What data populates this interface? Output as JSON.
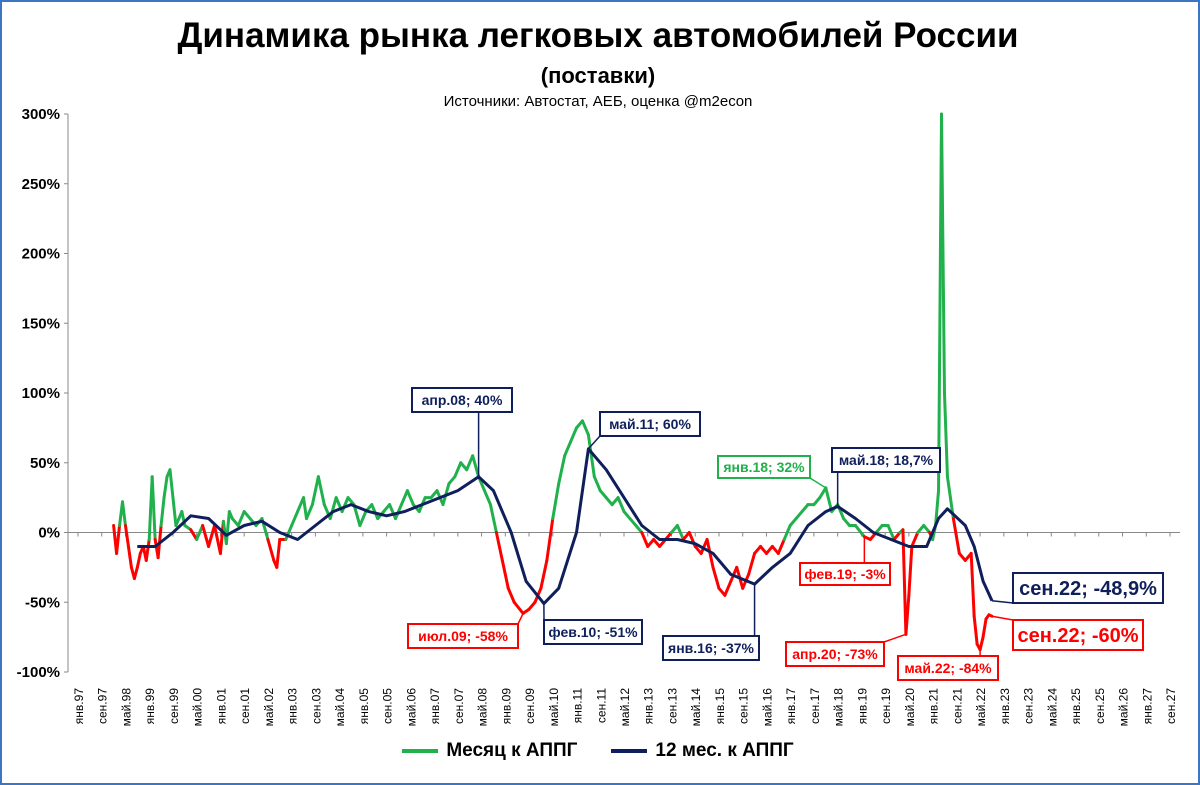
{
  "header": {
    "title": "Динамика рынка легковых автомобилей России",
    "subtitle": "(поставки)",
    "sources": "Источники: Автостат, АЕБ, оценка @m2econ"
  },
  "colors": {
    "monthly_up": "#20b14c",
    "monthly_down": "#ff0000",
    "annual": "#0f1f5c",
    "frame": "#3a76c4"
  },
  "legend": {
    "monthly": "Месяц к АППГ",
    "annual": "12 мес. к АППГ"
  },
  "chart_data": {
    "type": "line",
    "ylim": [
      -100,
      300
    ],
    "yticks": [
      -100,
      -50,
      0,
      50,
      100,
      150,
      200,
      250,
      300
    ],
    "ytick_labels": [
      "-100%",
      "-50%",
      "0%",
      "50%",
      "100%",
      "150%",
      "200%",
      "250%",
      "300%"
    ],
    "xlim": [
      "1997-01",
      "2027-09"
    ],
    "xtick_labels": [
      "янв.97",
      "сен.97",
      "май.98",
      "янв.99",
      "сен.99",
      "май.00",
      "янв.01",
      "сен.01",
      "май.02",
      "янв.03",
      "сен.03",
      "май.04",
      "янв.05",
      "сен.05",
      "май.06",
      "янв.07",
      "сен.07",
      "май.08",
      "янв.09",
      "сен.09",
      "май.10",
      "янв.11",
      "сен.11",
      "май.12",
      "янв.13",
      "сен.13",
      "май.14",
      "янв.15",
      "сен.15",
      "май.16",
      "янв.17",
      "сен.17",
      "май.18",
      "янв.19",
      "сен.19",
      "май.20",
      "янв.21",
      "сен.21",
      "май.22",
      "янв.23",
      "сен.23",
      "май.24",
      "янв.25",
      "сен.25",
      "май.26",
      "янв.27",
      "сен.27"
    ],
    "series": [
      {
        "name": "Месяц к АППГ",
        "points": [
          [
            "1998-01",
            5
          ],
          [
            "1998-02",
            -15
          ],
          [
            "1998-03",
            5
          ],
          [
            "1998-04",
            22
          ],
          [
            "1998-05",
            5
          ],
          [
            "1998-06",
            -10
          ],
          [
            "1998-07",
            -25
          ],
          [
            "1998-08",
            -33
          ],
          [
            "1998-09",
            -25
          ],
          [
            "1998-10",
            -15
          ],
          [
            "1998-11",
            -10
          ],
          [
            "1998-12",
            -20
          ],
          [
            "1999-01",
            -5
          ],
          [
            "1999-02",
            40
          ],
          [
            "1999-03",
            -5
          ],
          [
            "1999-04",
            -18
          ],
          [
            "1999-05",
            5
          ],
          [
            "1999-06",
            25
          ],
          [
            "1999-07",
            40
          ],
          [
            "1999-08",
            45
          ],
          [
            "1999-09",
            25
          ],
          [
            "1999-10",
            5
          ],
          [
            "1999-11",
            10
          ],
          [
            "1999-12",
            15
          ],
          [
            "2000-01",
            5
          ],
          [
            "2000-03",
            2
          ],
          [
            "2000-05",
            -5
          ],
          [
            "2000-07",
            5
          ],
          [
            "2000-09",
            -10
          ],
          [
            "2000-11",
            5
          ],
          [
            "2001-01",
            -15
          ],
          [
            "2001-02",
            8
          ],
          [
            "2001-03",
            -8
          ],
          [
            "2001-04",
            15
          ],
          [
            "2001-05",
            10
          ],
          [
            "2001-07",
            5
          ],
          [
            "2001-09",
            15
          ],
          [
            "2001-11",
            10
          ],
          [
            "2002-01",
            5
          ],
          [
            "2002-03",
            10
          ],
          [
            "2002-05",
            -5
          ],
          [
            "2002-07",
            -20
          ],
          [
            "2002-08",
            -25
          ],
          [
            "2002-09",
            -5
          ],
          [
            "2002-11",
            -5
          ],
          [
            "2003-01",
            5
          ],
          [
            "2003-03",
            15
          ],
          [
            "2003-05",
            25
          ],
          [
            "2003-06",
            10
          ],
          [
            "2003-08",
            20
          ],
          [
            "2003-10",
            40
          ],
          [
            "2003-12",
            20
          ],
          [
            "2004-02",
            10
          ],
          [
            "2004-04",
            25
          ],
          [
            "2004-06",
            15
          ],
          [
            "2004-08",
            25
          ],
          [
            "2004-10",
            20
          ],
          [
            "2004-12",
            5
          ],
          [
            "2005-02",
            15
          ],
          [
            "2005-04",
            20
          ],
          [
            "2005-06",
            10
          ],
          [
            "2005-08",
            15
          ],
          [
            "2005-10",
            20
          ],
          [
            "2005-12",
            10
          ],
          [
            "2006-02",
            20
          ],
          [
            "2006-04",
            30
          ],
          [
            "2006-06",
            20
          ],
          [
            "2006-08",
            15
          ],
          [
            "2006-10",
            25
          ],
          [
            "2006-12",
            25
          ],
          [
            "2007-02",
            30
          ],
          [
            "2007-04",
            20
          ],
          [
            "2007-06",
            35
          ],
          [
            "2007-08",
            40
          ],
          [
            "2007-10",
            50
          ],
          [
            "2007-12",
            45
          ],
          [
            "2008-02",
            55
          ],
          [
            "2008-04",
            40
          ],
          [
            "2008-06",
            30
          ],
          [
            "2008-08",
            20
          ],
          [
            "2008-10",
            0
          ],
          [
            "2008-12",
            -20
          ],
          [
            "2009-02",
            -40
          ],
          [
            "2009-04",
            -50
          ],
          [
            "2009-07",
            -58
          ],
          [
            "2009-09",
            -55
          ],
          [
            "2009-11",
            -50
          ],
          [
            "2010-01",
            -40
          ],
          [
            "2010-03",
            -20
          ],
          [
            "2010-05",
            10
          ],
          [
            "2010-07",
            35
          ],
          [
            "2010-09",
            55
          ],
          [
            "2010-11",
            65
          ],
          [
            "2011-01",
            75
          ],
          [
            "2011-03",
            80
          ],
          [
            "2011-05",
            70
          ],
          [
            "2011-07",
            40
          ],
          [
            "2011-09",
            30
          ],
          [
            "2011-11",
            25
          ],
          [
            "2012-01",
            20
          ],
          [
            "2012-03",
            25
          ],
          [
            "2012-05",
            15
          ],
          [
            "2012-07",
            10
          ],
          [
            "2012-09",
            5
          ],
          [
            "2012-11",
            0
          ],
          [
            "2013-01",
            -10
          ],
          [
            "2013-03",
            -5
          ],
          [
            "2013-05",
            -10
          ],
          [
            "2013-07",
            -5
          ],
          [
            "2013-09",
            0
          ],
          [
            "2013-11",
            5
          ],
          [
            "2014-01",
            -5
          ],
          [
            "2014-03",
            0
          ],
          [
            "2014-05",
            -10
          ],
          [
            "2014-07",
            -15
          ],
          [
            "2014-09",
            -5
          ],
          [
            "2014-11",
            -25
          ],
          [
            "2015-01",
            -40
          ],
          [
            "2015-03",
            -45
          ],
          [
            "2015-05",
            -35
          ],
          [
            "2015-07",
            -25
          ],
          [
            "2015-09",
            -40
          ],
          [
            "2015-11",
            -30
          ],
          [
            "2016-01",
            -15
          ],
          [
            "2016-03",
            -10
          ],
          [
            "2016-05",
            -15
          ],
          [
            "2016-07",
            -10
          ],
          [
            "2016-09",
            -15
          ],
          [
            "2016-11",
            -5
          ],
          [
            "2017-01",
            5
          ],
          [
            "2017-03",
            10
          ],
          [
            "2017-05",
            15
          ],
          [
            "2017-07",
            20
          ],
          [
            "2017-09",
            20
          ],
          [
            "2017-11",
            25
          ],
          [
            "2018-01",
            32
          ],
          [
            "2018-03",
            15
          ],
          [
            "2018-05",
            20
          ],
          [
            "2018-07",
            10
          ],
          [
            "2018-09",
            5
          ],
          [
            "2018-11",
            5
          ],
          [
            "2019-02",
            -3
          ],
          [
            "2019-04",
            -5
          ],
          [
            "2019-06",
            0
          ],
          [
            "2019-08",
            5
          ],
          [
            "2019-10",
            5
          ],
          [
            "2019-12",
            -5
          ],
          [
            "2020-02",
            0
          ],
          [
            "2020-03",
            2
          ],
          [
            "2020-04",
            -73
          ],
          [
            "2020-05",
            -45
          ],
          [
            "2020-06",
            -10
          ],
          [
            "2020-08",
            0
          ],
          [
            "2020-10",
            5
          ],
          [
            "2020-12",
            0
          ],
          [
            "2021-01",
            -5
          ],
          [
            "2021-02",
            5
          ],
          [
            "2021-03",
            30
          ],
          [
            "2021-04",
            300
          ],
          [
            "2021-05",
            100
          ],
          [
            "2021-06",
            40
          ],
          [
            "2021-08",
            10
          ],
          [
            "2021-10",
            -15
          ],
          [
            "2021-12",
            -20
          ],
          [
            "2022-02",
            -15
          ],
          [
            "2022-03",
            -60
          ],
          [
            "2022-04",
            -80
          ],
          [
            "2022-05",
            -84
          ],
          [
            "2022-06",
            -75
          ],
          [
            "2022-07",
            -62
          ],
          [
            "2022-08",
            -59
          ],
          [
            "2022-09",
            -60
          ]
        ]
      },
      {
        "name": "12 мес. к АППГ",
        "points": [
          [
            "1998-09",
            -10
          ],
          [
            "1999-03",
            -10
          ],
          [
            "1999-09",
            0
          ],
          [
            "2000-03",
            12
          ],
          [
            "2000-09",
            10
          ],
          [
            "2001-03",
            -2
          ],
          [
            "2001-09",
            5
          ],
          [
            "2002-03",
            8
          ],
          [
            "2002-09",
            0
          ],
          [
            "2003-03",
            -5
          ],
          [
            "2003-09",
            5
          ],
          [
            "2004-03",
            15
          ],
          [
            "2004-09",
            20
          ],
          [
            "2005-03",
            15
          ],
          [
            "2005-09",
            12
          ],
          [
            "2006-03",
            15
          ],
          [
            "2006-09",
            20
          ],
          [
            "2007-03",
            25
          ],
          [
            "2007-09",
            30
          ],
          [
            "2008-04",
            40
          ],
          [
            "2008-09",
            30
          ],
          [
            "2009-03",
            0
          ],
          [
            "2009-08",
            -35
          ],
          [
            "2010-02",
            -51
          ],
          [
            "2010-07",
            -40
          ],
          [
            "2011-01",
            0
          ],
          [
            "2011-05",
            60
          ],
          [
            "2011-11",
            45
          ],
          [
            "2012-05",
            25
          ],
          [
            "2012-11",
            5
          ],
          [
            "2013-05",
            -5
          ],
          [
            "2013-11",
            -5
          ],
          [
            "2014-05",
            -8
          ],
          [
            "2014-11",
            -15
          ],
          [
            "2015-05",
            -30
          ],
          [
            "2016-01",
            -37
          ],
          [
            "2016-07",
            -25
          ],
          [
            "2017-01",
            -15
          ],
          [
            "2017-07",
            5
          ],
          [
            "2018-01",
            15
          ],
          [
            "2018-05",
            18.7
          ],
          [
            "2018-11",
            10
          ],
          [
            "2019-05",
            0
          ],
          [
            "2019-11",
            -5
          ],
          [
            "2020-05",
            -10
          ],
          [
            "2020-11",
            -10
          ],
          [
            "2021-03",
            10
          ],
          [
            "2021-06",
            17
          ],
          [
            "2021-12",
            5
          ],
          [
            "2022-03",
            -10
          ],
          [
            "2022-06",
            -35
          ],
          [
            "2022-09",
            -48.9
          ]
        ]
      }
    ],
    "annotations": [
      {
        "text": "апр.08; 40%",
        "at": [
          "2008-04",
          40
        ],
        "style": "navy"
      },
      {
        "text": "май.11; 60%",
        "at": [
          "2011-05",
          60
        ],
        "style": "navy"
      },
      {
        "text": "янв.18; 32%",
        "at": [
          "2018-01",
          32
        ],
        "style": "green"
      },
      {
        "text": "май.18; 18,7%",
        "at": [
          "2018-05",
          18.7
        ],
        "style": "navy"
      },
      {
        "text": "фев.19; -3%",
        "at": [
          "2019-02",
          -3
        ],
        "style": "red"
      },
      {
        "text": "июл.09; -58%",
        "at": [
          "2009-07",
          -58
        ],
        "style": "red"
      },
      {
        "text": "фев.10; -51%",
        "at": [
          "2010-02",
          -51
        ],
        "style": "navy"
      },
      {
        "text": "янв.16; -37%",
        "at": [
          "2016-01",
          -37
        ],
        "style": "navy"
      },
      {
        "text": "апр.20; -73%",
        "at": [
          "2020-04",
          -73
        ],
        "style": "red"
      },
      {
        "text": "май.22; -84%",
        "at": [
          "2022-05",
          -84
        ],
        "style": "red"
      },
      {
        "text": "сен.22; -48,9%",
        "at": [
          "2022-09",
          -48.9
        ],
        "style": "navy-big"
      },
      {
        "text": "сен.22; -60%",
        "at": [
          "2022-09",
          -60
        ],
        "style": "red-big"
      }
    ]
  }
}
